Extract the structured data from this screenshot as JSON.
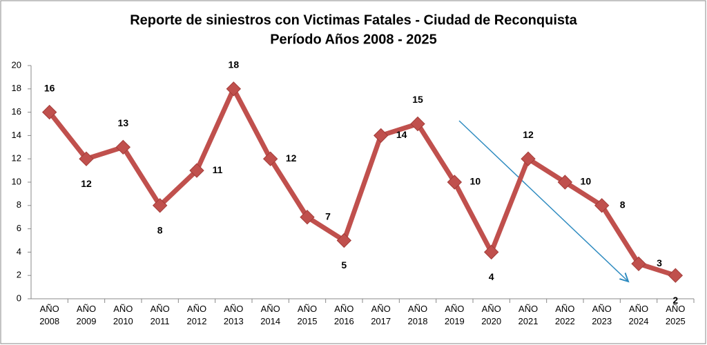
{
  "chart_data": {
    "type": "line",
    "title": "Reporte de siniestros con Victimas Fatales - Ciudad de Reconquista",
    "subtitle": "Período Años 2008 - 2025",
    "categories": [
      "AÑO 2008",
      "AÑO 2009",
      "AÑO 2010",
      "AÑO 2011",
      "AÑO 2012",
      "AÑO 2013",
      "AÑO 2014",
      "AÑO 2015",
      "AÑO 2016",
      "AÑO 2017",
      "AÑO 2018",
      "AÑO 2019",
      "AÑO 2020",
      "AÑO 2021",
      "AÑO 2022",
      "AÑO 2023",
      "AÑO 2024",
      "AÑO 2025"
    ],
    "values": [
      16,
      12,
      13,
      8,
      11,
      18,
      12,
      7,
      5,
      14,
      15,
      10,
      4,
      12,
      10,
      8,
      3,
      2
    ],
    "color": "#c0504d",
    "ylim": [
      0,
      20
    ],
    "yticks": [
      0,
      2,
      4,
      6,
      8,
      10,
      12,
      14,
      16,
      18,
      20
    ]
  }
}
